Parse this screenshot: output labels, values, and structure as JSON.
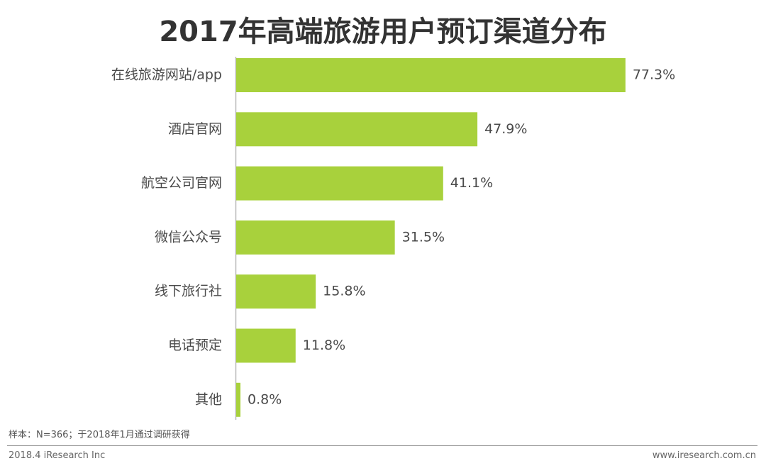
{
  "chart_data": {
    "type": "bar",
    "orientation": "horizontal",
    "title": "2017年高端旅游用户预订渠道分布",
    "categories": [
      "在线旅游网站/app",
      "酒店官网",
      "航空公司官网",
      "微信公众号",
      "线下旅行社",
      "电话预定",
      "其他"
    ],
    "values": [
      77.3,
      47.9,
      41.1,
      31.5,
      15.8,
      11.8,
      0.8
    ],
    "value_labels": [
      "77.3%",
      "47.9%",
      "41.1%",
      "31.5%",
      "15.8%",
      "11.8%",
      "0.8%"
    ],
    "unit": "%",
    "xlim": [
      0,
      100
    ],
    "grid": false,
    "legend": "none",
    "bar_color": "#a8d13c",
    "axis_color": "#b8b8b8"
  },
  "footer": {
    "sample_note": "样本：N=366；于2018年1月通过调研获得",
    "left": "2018.4 iResearch Inc",
    "right": "www.iresearch.com.cn"
  }
}
